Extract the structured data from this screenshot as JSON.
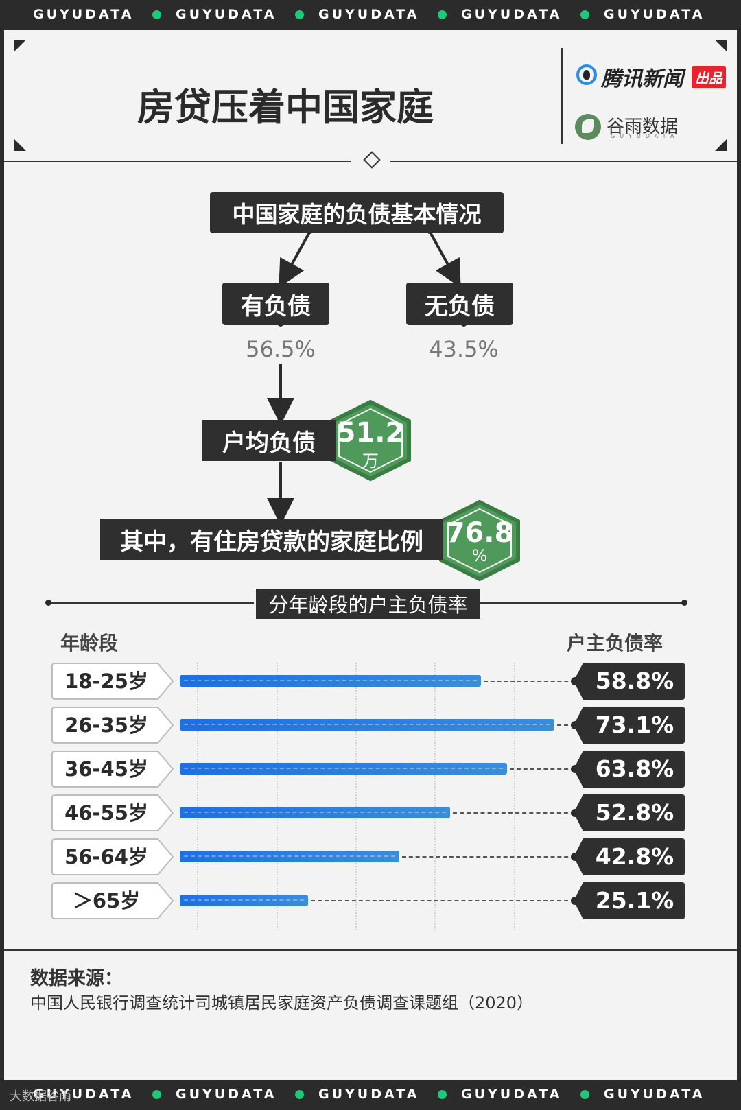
{
  "brand_strip": {
    "text": "GUYUDATA"
  },
  "header": {
    "title": "房贷压着中国家庭",
    "brand1": "腾讯新闻",
    "brand1_badge": "出品",
    "brand2": "谷雨数据",
    "brand2_sub": "GUYUDATA"
  },
  "flow": {
    "root": "中国家庭的负债基本情况",
    "left_label": "有负债",
    "left_value": "56.5%",
    "right_label": "无负债",
    "right_value": "43.5%",
    "avg_label": "户均负债",
    "avg_value": "51.2",
    "avg_unit": "万",
    "mortgage_label": "其中，有住房贷款的家庭比例",
    "mortgage_value": "76.8",
    "mortgage_unit": "%"
  },
  "chart_data": {
    "type": "bar",
    "title": "分年龄段的户主负债率",
    "xlabel": "年龄段",
    "ylabel": "户主负债率",
    "categories": [
      "18-25岁",
      "26-35岁",
      "36-45岁",
      "46-55岁",
      "56-64岁",
      "＞65岁"
    ],
    "values": [
      58.8,
      73.1,
      63.8,
      52.8,
      42.8,
      25.1
    ],
    "value_labels": [
      "58.8%",
      "73.1%",
      "63.8%",
      "52.8%",
      "42.8%",
      "25.1%"
    ],
    "xlim": [
      0,
      75
    ],
    "orientation": "horizontal",
    "grid": true
  },
  "source": {
    "label": "数据来源：",
    "text": "中国人民银行调查统计司城镇居民家庭资产负债调查课题组（2020）"
  },
  "watermark": "大数据谷雨"
}
